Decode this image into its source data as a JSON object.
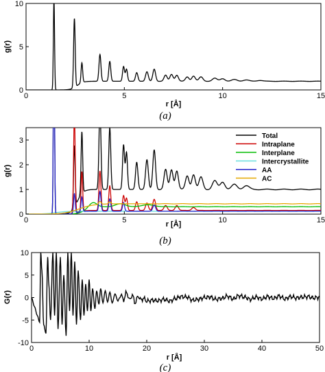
{
  "chart_data": [
    {
      "type": "line",
      "panel_label": "(a)",
      "xlabel": "r [Å]",
      "ylabel": "g(r)",
      "xlim": [
        0,
        15
      ],
      "ylim": [
        0,
        10
      ],
      "xticks": [
        "0",
        "5",
        "10",
        "15"
      ],
      "yticks": [
        "0",
        "5",
        "10"
      ],
      "grid": false,
      "series": [
        {
          "color": "#000000",
          "peaks": [
            [
              1.42,
              10.5,
              0.03
            ],
            [
              2.46,
              8.0,
              0.04
            ],
            [
              2.84,
              2.3,
              0.04
            ],
            [
              3.76,
              3.1,
              0.05
            ],
            [
              4.26,
              2.3,
              0.05
            ],
            [
              4.96,
              1.7,
              0.05
            ],
            [
              5.11,
              1.4,
              0.05
            ],
            [
              5.63,
              1.0,
              0.06
            ],
            [
              6.15,
              1.1,
              0.07
            ],
            [
              6.52,
              1.4,
              0.07
            ],
            [
              7.1,
              0.7,
              0.08
            ],
            [
              7.4,
              0.8,
              0.08
            ],
            [
              7.67,
              0.7,
              0.08
            ],
            [
              8.2,
              0.5,
              0.09
            ],
            [
              8.52,
              0.6,
              0.09
            ],
            [
              8.9,
              0.5,
              0.1
            ],
            [
              9.6,
              0.35,
              0.12
            ],
            [
              10.0,
              0.3,
              0.12
            ],
            [
              10.6,
              0.2,
              0.14
            ],
            [
              11.2,
              0.15,
              0.15
            ],
            [
              11.9,
              0.1,
              0.15
            ]
          ],
          "baseline": {
            "start": 2.6,
            "level": 1.0,
            "width": 0.6
          }
        }
      ]
    },
    {
      "type": "line",
      "panel_label": "(b)",
      "xlabel": "r [Å]",
      "ylabel": "g(r)",
      "xlim": [
        0,
        15
      ],
      "ylim": [
        0,
        3.5
      ],
      "xticks": [
        "0",
        "5",
        "10",
        "15"
      ],
      "yticks": [
        "0",
        "1",
        "2",
        "3"
      ],
      "grid": false,
      "legend_position": "top-right",
      "series": [
        {
          "name": "Total",
          "color": "#000000",
          "peaks": [
            [
              1.42,
              8.0,
              0.03
            ],
            [
              2.46,
              2.5,
              0.04
            ],
            [
              2.84,
              2.5,
              0.04
            ],
            [
              3.76,
              3.3,
              0.05
            ],
            [
              4.26,
              2.5,
              0.05
            ],
            [
              4.96,
              1.8,
              0.05
            ],
            [
              5.11,
              1.5,
              0.05
            ],
            [
              5.63,
              1.1,
              0.06
            ],
            [
              6.15,
              1.2,
              0.07
            ],
            [
              6.52,
              1.6,
              0.07
            ],
            [
              7.1,
              0.8,
              0.08
            ],
            [
              7.4,
              0.8,
              0.08
            ],
            [
              7.67,
              0.75,
              0.08
            ],
            [
              8.2,
              0.55,
              0.09
            ],
            [
              8.52,
              0.6,
              0.09
            ],
            [
              8.9,
              0.5,
              0.1
            ],
            [
              9.6,
              0.35,
              0.12
            ],
            [
              10.0,
              0.3,
              0.12
            ],
            [
              10.6,
              0.2,
              0.14
            ],
            [
              11.2,
              0.15,
              0.15
            ]
          ],
          "baseline": {
            "start": 2.6,
            "level": 1.0,
            "width": 0.6
          }
        },
        {
          "name": "Intraplane",
          "color": "#cc0000",
          "peaks": [
            [
              2.46,
              4.0,
              0.04
            ],
            [
              2.84,
              1.6,
              0.04
            ],
            [
              3.76,
              1.6,
              0.05
            ],
            [
              4.26,
              1.0,
              0.05
            ],
            [
              4.96,
              0.6,
              0.05
            ],
            [
              5.11,
              0.5,
              0.05
            ],
            [
              5.63,
              0.35,
              0.06
            ],
            [
              6.15,
              0.3,
              0.07
            ],
            [
              6.52,
              0.45,
              0.07
            ],
            [
              7.1,
              0.2,
              0.08
            ],
            [
              7.67,
              0.2,
              0.08
            ],
            [
              8.52,
              0.12,
              0.09
            ]
          ],
          "baseline": {
            "start": 2.6,
            "level": 0.15,
            "width": 0.6
          }
        },
        {
          "name": "Interplane",
          "color": "#00bb00",
          "peaks": [
            [
              3.4,
              0.2,
              0.2
            ],
            [
              4.8,
              0.12,
              0.25
            ],
            [
              6.2,
              0.08,
              0.3
            ]
          ],
          "baseline": {
            "start": 3.0,
            "level": 0.3,
            "width": 0.8
          }
        },
        {
          "name": "Intercrystallite",
          "color": "#66dddd",
          "peaks": [],
          "baseline": {
            "start": 1.5,
            "level": 0.12,
            "width": 1.2
          }
        },
        {
          "name": "AA",
          "color": "#2222cc",
          "peaks": [
            [
              1.42,
              8.0,
              0.03
            ],
            [
              2.46,
              0.8,
              0.04
            ],
            [
              2.84,
              0.6,
              0.04
            ],
            [
              3.76,
              0.8,
              0.05
            ],
            [
              4.26,
              0.5,
              0.05
            ],
            [
              4.96,
              0.35,
              0.05
            ],
            [
              6.52,
              0.25,
              0.07
            ]
          ],
          "baseline": {
            "start": 2.6,
            "level": 0.12,
            "width": 0.6
          }
        },
        {
          "name": "AC",
          "color": "#e6a800",
          "peaks": [
            [
              3.76,
              0.12,
              0.06
            ],
            [
              4.26,
              0.08,
              0.06
            ]
          ],
          "baseline": {
            "start": 2.7,
            "level": 0.42,
            "width": 1.5
          }
        }
      ]
    },
    {
      "type": "line",
      "panel_label": "(c)",
      "xlabel": "r [Å]",
      "ylabel": "G(r)",
      "xlim": [
        0,
        50
      ],
      "ylim": [
        -10,
        10
      ],
      "xticks": [
        "0",
        "10",
        "20",
        "30",
        "40",
        "50"
      ],
      "yticks": [
        "10",
        "5",
        "0",
        "-5",
        "-10"
      ],
      "grid": false,
      "series": [
        {
          "color": "#000000",
          "samples": [
            [
              0,
              0
            ],
            [
              0.5,
              -2
            ],
            [
              1.0,
              -4
            ],
            [
              1.4,
              -5.5
            ],
            [
              1.6,
              10
            ],
            [
              1.8,
              6
            ],
            [
              2.1,
              -6
            ],
            [
              2.5,
              -8
            ],
            [
              2.8,
              9
            ],
            [
              3.0,
              3
            ],
            [
              3.3,
              -5
            ],
            [
              3.7,
              10
            ],
            [
              4.0,
              -4
            ],
            [
              4.3,
              10
            ],
            [
              4.6,
              -7
            ],
            [
              5.0,
              9
            ],
            [
              5.3,
              -6
            ],
            [
              5.6,
              5
            ],
            [
              6.0,
              -8.5
            ],
            [
              6.3,
              10
            ],
            [
              6.6,
              -3
            ],
            [
              6.9,
              10
            ],
            [
              7.2,
              -4
            ],
            [
              7.5,
              8
            ],
            [
              7.8,
              -6
            ],
            [
              8.1,
              6
            ],
            [
              8.5,
              -5
            ],
            [
              8.8,
              4
            ],
            [
              9.1,
              -4
            ],
            [
              9.4,
              3
            ],
            [
              9.7,
              -3
            ],
            [
              10.0,
              4
            ],
            [
              10.3,
              -3
            ],
            [
              10.6,
              2
            ],
            [
              11.0,
              -2.5
            ],
            [
              11.3,
              1.5
            ],
            [
              11.7,
              -1.5
            ],
            [
              12.0,
              2
            ],
            [
              12.4,
              -1.2
            ],
            [
              12.8,
              1.5
            ],
            [
              13.2,
              -1
            ],
            [
              13.6,
              1.2
            ],
            [
              14.0,
              -1.2
            ],
            [
              14.5,
              0.8
            ],
            [
              15.0,
              -0.8
            ],
            [
              15.5,
              0.6
            ],
            [
              16.0,
              -0.5
            ],
            [
              16.5,
              1.2
            ],
            [
              17.0,
              -0.5
            ],
            [
              17.5,
              0.5
            ],
            [
              18.0,
              -1.2
            ],
            [
              18.5,
              0.3
            ],
            [
              19.0,
              -0.5
            ],
            [
              19.5,
              -0.2
            ],
            [
              20.0,
              -0.8
            ],
            [
              21,
              -0.6
            ],
            [
              22,
              -0.7
            ],
            [
              23,
              -0.4
            ],
            [
              24,
              -0.8
            ],
            [
              25,
              -0.2
            ],
            [
              26,
              0.2
            ],
            [
              27,
              0.1
            ],
            [
              28,
              -0.6
            ],
            [
              29,
              -0.4
            ],
            [
              30,
              0
            ],
            [
              31,
              0.1
            ],
            [
              32,
              -0.4
            ],
            [
              33,
              -0.2
            ],
            [
              34,
              0.3
            ],
            [
              35,
              -0.3
            ],
            [
              36,
              0.4
            ],
            [
              37,
              0.1
            ],
            [
              38,
              -0.4
            ],
            [
              39,
              0.1
            ],
            [
              40,
              -0.3
            ],
            [
              41,
              0.2
            ],
            [
              42,
              -0.2
            ],
            [
              43,
              0.3
            ],
            [
              44,
              -0.3
            ],
            [
              45,
              0.2
            ],
            [
              46,
              -0.1
            ],
            [
              47,
              0.1
            ],
            [
              48,
              0.2
            ],
            [
              49,
              -0.1
            ],
            [
              50,
              0.1
            ]
          ]
        }
      ]
    }
  ]
}
